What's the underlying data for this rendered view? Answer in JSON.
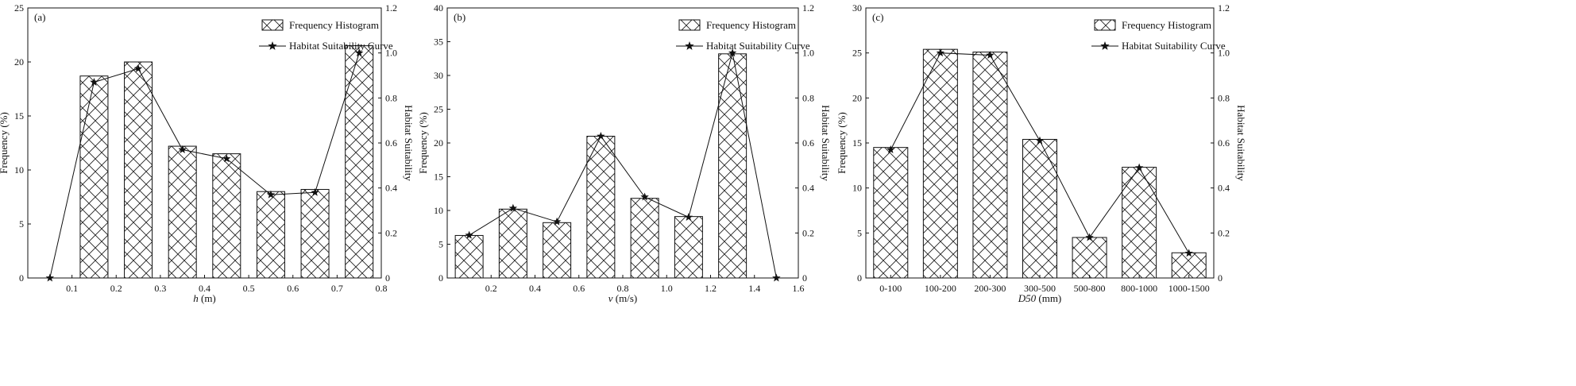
{
  "chart_data": [
    {
      "type": "bar",
      "panel_label": "(a)",
      "xlabel_var": "h",
      "xlabel_unit": " (m)",
      "ylabel": "Frequency (%)",
      "y2label": "Habitat Suitability",
      "xlim": [
        0,
        0.8
      ],
      "xticks": [
        "0.1",
        "0.2",
        "0.3",
        "0.4",
        "0.5",
        "0.6",
        "0.7",
        "0.8"
      ],
      "ylim": [
        0,
        25
      ],
      "yticks": [
        "0",
        "5",
        "10",
        "15",
        "20",
        "25"
      ],
      "y2lim": [
        0,
        1.2
      ],
      "y2ticks": [
        "0",
        "0.2",
        "0.4",
        "0.6",
        "0.8",
        "1.0",
        "1.2"
      ],
      "legend": [
        "Frequency Histogram",
        "Habitat Suitability Curve"
      ],
      "legend_position": "top-right",
      "series": [
        {
          "name": "Frequency Histogram",
          "kind": "bar",
          "x": [
            0.15,
            0.25,
            0.35,
            0.45,
            0.55,
            0.65,
            0.75
          ],
          "values": [
            18.7,
            20.0,
            12.2,
            11.5,
            8.0,
            8.2,
            21.5
          ]
        },
        {
          "name": "Habitat Suitability Curve",
          "kind": "line",
          "axis": "right",
          "x": [
            0.05,
            0.15,
            0.25,
            0.35,
            0.45,
            0.55,
            0.65,
            0.75
          ],
          "values": [
            0.0,
            0.87,
            0.93,
            0.57,
            0.53,
            0.37,
            0.38,
            1.0
          ]
        }
      ]
    },
    {
      "type": "bar",
      "panel_label": "(b)",
      "xlabel_var": "v",
      "xlabel_unit": " (m/s)",
      "ylabel": "Frequency (%)",
      "y2label": "Habitat Suitability",
      "xlim": [
        0,
        1.6
      ],
      "xticks": [
        "0.2",
        "0.4",
        "0.6",
        "0.8",
        "1.0",
        "1.2",
        "1.4",
        "1.6"
      ],
      "ylim": [
        0,
        40
      ],
      "yticks": [
        "0",
        "5",
        "10",
        "15",
        "20",
        "25",
        "30",
        "35",
        "40"
      ],
      "y2lim": [
        0,
        1.2
      ],
      "y2ticks": [
        "0",
        "0.2",
        "0.4",
        "0.6",
        "0.8",
        "1.0",
        "1.2"
      ],
      "legend": [
        "Frequency Histogram",
        "Habitat Suitability Curve"
      ],
      "legend_position": "top-right",
      "series": [
        {
          "name": "Frequency Histogram",
          "kind": "bar",
          "x": [
            0.1,
            0.3,
            0.5,
            0.7,
            0.9,
            1.1,
            1.3
          ],
          "values": [
            6.3,
            10.2,
            8.2,
            21.0,
            11.8,
            9.1,
            33.2
          ]
        },
        {
          "name": "Habitat Suitability Curve",
          "kind": "line",
          "axis": "right",
          "x": [
            0.1,
            0.3,
            0.5,
            0.7,
            0.9,
            1.1,
            1.3,
            1.5
          ],
          "values": [
            0.19,
            0.31,
            0.25,
            0.63,
            0.36,
            0.27,
            1.0,
            0.0
          ]
        }
      ]
    },
    {
      "type": "bar",
      "panel_label": "(c)",
      "xlabel_var": "D50",
      "xlabel_unit": " (mm)",
      "ylabel": "Frequency (%)",
      "y2label": "Habitat Suitability",
      "categories": [
        "0-100",
        "100-200",
        "200-300",
        "300-500",
        "500-800",
        "800-1000",
        "1000-1500"
      ],
      "ylim": [
        0,
        30
      ],
      "yticks": [
        "0",
        "5",
        "10",
        "15",
        "20",
        "25",
        "30"
      ],
      "y2lim": [
        0,
        1.2
      ],
      "y2ticks": [
        "0",
        "0.2",
        "0.4",
        "0.6",
        "0.8",
        "1.0",
        "1.2"
      ],
      "legend": [
        "Frequency Histogram",
        "Habitat Suitability Curve"
      ],
      "legend_position": "top-right",
      "series": [
        {
          "name": "Frequency Histogram",
          "kind": "bar",
          "values": [
            14.5,
            25.4,
            25.1,
            15.4,
            4.5,
            12.3,
            2.8
          ]
        },
        {
          "name": "Habitat Suitability Curve",
          "kind": "line",
          "axis": "right",
          "values": [
            0.57,
            1.0,
            0.99,
            0.61,
            0.18,
            0.49,
            0.11
          ]
        }
      ]
    }
  ]
}
